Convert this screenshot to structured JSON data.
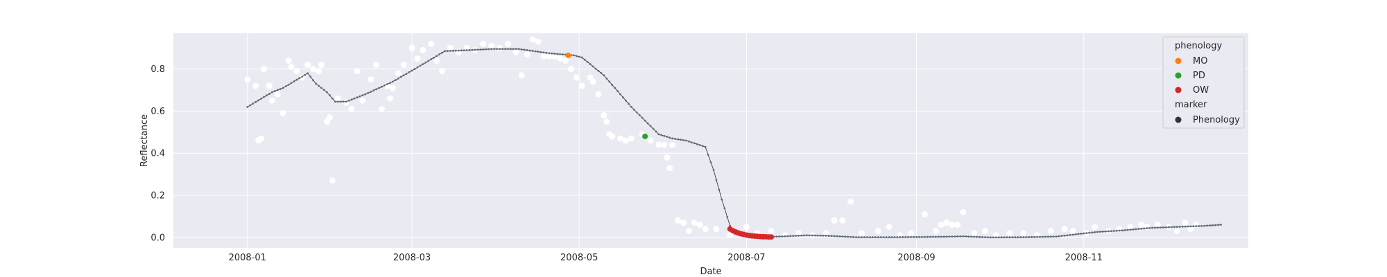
{
  "chart_data": {
    "type": "scatter",
    "xlabel": "Date",
    "ylabel": "Reflectance",
    "xlim": [
      "2007-12-05",
      "2008-12-31"
    ],
    "ylim": [
      -0.05,
      0.97
    ],
    "xticks": [
      "2008-01-01",
      "2008-03-01",
      "2008-05-01",
      "2008-07-01",
      "2008-09-01",
      "2008-11-01"
    ],
    "xtick_labels": [
      "2008-01",
      "2008-03",
      "2008-05",
      "2008-07",
      "2008-09",
      "2008-11"
    ],
    "yticks": [
      0.0,
      0.2,
      0.4,
      0.6,
      0.8
    ],
    "ytick_labels": [
      "0.0",
      "0.2",
      "0.4",
      "0.6",
      "0.8"
    ],
    "grid": true,
    "background_color": "#eaeaf2",
    "colors": {
      "observations": "#ffffff",
      "smoothed_line": "#5a6e7a",
      "MO": "#ff7f0e",
      "PD": "#2ca02c",
      "OW": "#d62728",
      "marker": "#333333"
    },
    "observations": [
      [
        "2008-01-01",
        0.75
      ],
      [
        "2008-01-04",
        0.72
      ],
      [
        "2008-01-05",
        0.46
      ],
      [
        "2008-01-06",
        0.47
      ],
      [
        "2008-01-07",
        0.8
      ],
      [
        "2008-01-09",
        0.72
      ],
      [
        "2008-01-10",
        0.65
      ],
      [
        "2008-01-12",
        0.68
      ],
      [
        "2008-01-14",
        0.59
      ],
      [
        "2008-01-16",
        0.84
      ],
      [
        "2008-01-17",
        0.81
      ],
      [
        "2008-01-19",
        0.79
      ],
      [
        "2008-01-21",
        0.76
      ],
      [
        "2008-01-23",
        0.82
      ],
      [
        "2008-01-25",
        0.8
      ],
      [
        "2008-01-27",
        0.79
      ],
      [
        "2008-01-28",
        0.82
      ],
      [
        "2008-01-30",
        0.55
      ],
      [
        "2008-01-31",
        0.57
      ],
      [
        "2008-02-01",
        0.27
      ],
      [
        "2008-02-03",
        0.66
      ],
      [
        "2008-02-06",
        0.64
      ],
      [
        "2008-02-08",
        0.61
      ],
      [
        "2008-02-10",
        0.79
      ],
      [
        "2008-02-12",
        0.65
      ],
      [
        "2008-02-15",
        0.75
      ],
      [
        "2008-02-17",
        0.82
      ],
      [
        "2008-02-19",
        0.61
      ],
      [
        "2008-02-21",
        0.72
      ],
      [
        "2008-02-22",
        0.66
      ],
      [
        "2008-02-23",
        0.71
      ],
      [
        "2008-02-25",
        0.78
      ],
      [
        "2008-02-27",
        0.82
      ],
      [
        "2008-03-01",
        0.9
      ],
      [
        "2008-03-03",
        0.85
      ],
      [
        "2008-03-05",
        0.89
      ],
      [
        "2008-03-08",
        0.92
      ],
      [
        "2008-03-10",
        0.84
      ],
      [
        "2008-03-12",
        0.79
      ],
      [
        "2008-03-15",
        0.9
      ],
      [
        "2008-03-18",
        0.88
      ],
      [
        "2008-03-21",
        0.9
      ],
      [
        "2008-03-24",
        0.89
      ],
      [
        "2008-03-27",
        0.92
      ],
      [
        "2008-03-30",
        0.91
      ],
      [
        "2008-04-02",
        0.9
      ],
      [
        "2008-04-05",
        0.92
      ],
      [
        "2008-04-08",
        0.88
      ],
      [
        "2008-04-10",
        0.77
      ],
      [
        "2008-04-12",
        0.87
      ],
      [
        "2008-04-14",
        0.94
      ],
      [
        "2008-04-16",
        0.93
      ],
      [
        "2008-04-18",
        0.86
      ],
      [
        "2008-04-20",
        0.86
      ],
      [
        "2008-04-22",
        0.86
      ],
      [
        "2008-04-24",
        0.85
      ],
      [
        "2008-04-26",
        0.84
      ],
      [
        "2008-04-28",
        0.8
      ],
      [
        "2008-04-30",
        0.76
      ],
      [
        "2008-05-02",
        0.72
      ],
      [
        "2008-05-05",
        0.76
      ],
      [
        "2008-05-06",
        0.74
      ],
      [
        "2008-05-08",
        0.68
      ],
      [
        "2008-05-10",
        0.58
      ],
      [
        "2008-05-11",
        0.55
      ],
      [
        "2008-05-12",
        0.49
      ],
      [
        "2008-05-13",
        0.48
      ],
      [
        "2008-05-16",
        0.47
      ],
      [
        "2008-05-18",
        0.46
      ],
      [
        "2008-05-20",
        0.47
      ],
      [
        "2008-05-24",
        0.49
      ],
      [
        "2008-05-27",
        0.46
      ],
      [
        "2008-05-30",
        0.44
      ],
      [
        "2008-06-01",
        0.44
      ],
      [
        "2008-06-02",
        0.38
      ],
      [
        "2008-06-03",
        0.33
      ],
      [
        "2008-06-04",
        0.44
      ],
      [
        "2008-06-06",
        0.08
      ],
      [
        "2008-06-08",
        0.07
      ],
      [
        "2008-06-10",
        0.03
      ],
      [
        "2008-06-12",
        0.07
      ],
      [
        "2008-06-14",
        0.06
      ],
      [
        "2008-06-16",
        0.04
      ],
      [
        "2008-06-20",
        0.04
      ],
      [
        "2008-06-25",
        0.01
      ],
      [
        "2008-07-01",
        0.05
      ],
      [
        "2008-07-05",
        0.02
      ],
      [
        "2008-07-10",
        0.03
      ],
      [
        "2008-07-15",
        0.01
      ],
      [
        "2008-07-20",
        0.02
      ],
      [
        "2008-07-25",
        0.01
      ],
      [
        "2008-07-30",
        0.02
      ],
      [
        "2008-08-02",
        0.08
      ],
      [
        "2008-08-05",
        0.08
      ],
      [
        "2008-08-08",
        0.17
      ],
      [
        "2008-08-12",
        0.02
      ],
      [
        "2008-08-18",
        0.03
      ],
      [
        "2008-08-22",
        0.05
      ],
      [
        "2008-08-26",
        0.01
      ],
      [
        "2008-08-30",
        0.02
      ],
      [
        "2008-09-04",
        0.11
      ],
      [
        "2008-09-08",
        0.03
      ],
      [
        "2008-09-10",
        0.06
      ],
      [
        "2008-09-12",
        0.07
      ],
      [
        "2008-09-14",
        0.06
      ],
      [
        "2008-09-16",
        0.06
      ],
      [
        "2008-09-18",
        0.12
      ],
      [
        "2008-09-22",
        0.02
      ],
      [
        "2008-09-26",
        0.03
      ],
      [
        "2008-09-30",
        0.01
      ],
      [
        "2008-10-05",
        0.02
      ],
      [
        "2008-10-10",
        0.02
      ],
      [
        "2008-10-15",
        0.01
      ],
      [
        "2008-10-20",
        0.03
      ],
      [
        "2008-10-25",
        0.04
      ],
      [
        "2008-10-28",
        0.03
      ],
      [
        "2008-11-02",
        0.02
      ],
      [
        "2008-11-05",
        0.05
      ],
      [
        "2008-11-10",
        0.03
      ],
      [
        "2008-11-14",
        0.04
      ],
      [
        "2008-11-18",
        0.05
      ],
      [
        "2008-11-22",
        0.06
      ],
      [
        "2008-11-24",
        0.05
      ],
      [
        "2008-11-28",
        0.06
      ],
      [
        "2008-12-02",
        0.05
      ],
      [
        "2008-12-05",
        0.03
      ],
      [
        "2008-12-08",
        0.07
      ],
      [
        "2008-12-10",
        0.04
      ],
      [
        "2008-12-12",
        0.06
      ]
    ],
    "smoothed_knots": [
      [
        "2008-01-01",
        0.62
      ],
      [
        "2008-01-10",
        0.69
      ],
      [
        "2008-01-14",
        0.71
      ],
      [
        "2008-01-23",
        0.78
      ],
      [
        "2008-01-26",
        0.73
      ],
      [
        "2008-01-30",
        0.69
      ],
      [
        "2008-02-02",
        0.645
      ],
      [
        "2008-02-06",
        0.645
      ],
      [
        "2008-02-13",
        0.68
      ],
      [
        "2008-02-23",
        0.74
      ],
      [
        "2008-03-02",
        0.8
      ],
      [
        "2008-03-13",
        0.885
      ],
      [
        "2008-03-22",
        0.89
      ],
      [
        "2008-03-30",
        0.895
      ],
      [
        "2008-04-09",
        0.895
      ],
      [
        "2008-04-20",
        0.875
      ],
      [
        "2008-04-29",
        0.865
      ],
      [
        "2008-05-02",
        0.855
      ],
      [
        "2008-05-10",
        0.77
      ],
      [
        "2008-05-20",
        0.62
      ],
      [
        "2008-05-30",
        0.49
      ],
      [
        "2008-06-04",
        0.47
      ],
      [
        "2008-06-09",
        0.46
      ],
      [
        "2008-06-16",
        0.43
      ],
      [
        "2008-06-19",
        0.32
      ],
      [
        "2008-06-22",
        0.18
      ],
      [
        "2008-06-25",
        0.055
      ],
      [
        "2008-06-26",
        0.035
      ],
      [
        "2008-06-30",
        0.015
      ],
      [
        "2008-07-03",
        0.005
      ],
      [
        "2008-07-08",
        0.002
      ],
      [
        "2008-07-15",
        0.005
      ],
      [
        "2008-07-23",
        0.01
      ],
      [
        "2008-07-30",
        0.008
      ],
      [
        "2008-08-10",
        0.001
      ],
      [
        "2008-08-25",
        0.001
      ],
      [
        "2008-09-10",
        0.003
      ],
      [
        "2008-09-18",
        0.005
      ],
      [
        "2008-09-28",
        0.0
      ],
      [
        "2008-10-10",
        0.001
      ],
      [
        "2008-10-22",
        0.004
      ],
      [
        "2008-10-30",
        0.016
      ],
      [
        "2008-11-06",
        0.026
      ],
      [
        "2008-11-15",
        0.033
      ],
      [
        "2008-11-25",
        0.045
      ],
      [
        "2008-12-05",
        0.05
      ],
      [
        "2008-12-15",
        0.055
      ],
      [
        "2008-12-21",
        0.06
      ]
    ],
    "phenology_points": [
      {
        "phase": "MO",
        "date": "2008-04-27",
        "value": 0.865
      },
      {
        "phase": "PD",
        "date": "2008-05-25",
        "value": 0.48
      },
      {
        "phase": "OW",
        "date": "2008-06-25",
        "value": 0.04
      },
      {
        "phase": "OW",
        "date": "2008-06-26",
        "value": 0.032
      },
      {
        "phase": "OW",
        "date": "2008-06-27",
        "value": 0.026
      },
      {
        "phase": "OW",
        "date": "2008-06-28",
        "value": 0.021
      },
      {
        "phase": "OW",
        "date": "2008-06-29",
        "value": 0.017
      },
      {
        "phase": "OW",
        "date": "2008-06-30",
        "value": 0.014
      },
      {
        "phase": "OW",
        "date": "2008-07-01",
        "value": 0.011
      },
      {
        "phase": "OW",
        "date": "2008-07-02",
        "value": 0.009
      },
      {
        "phase": "OW",
        "date": "2008-07-03",
        "value": 0.007
      },
      {
        "phase": "OW",
        "date": "2008-07-04",
        "value": 0.006
      },
      {
        "phase": "OW",
        "date": "2008-07-05",
        "value": 0.005
      },
      {
        "phase": "OW",
        "date": "2008-07-06",
        "value": 0.004
      },
      {
        "phase": "OW",
        "date": "2008-07-07",
        "value": 0.003
      },
      {
        "phase": "OW",
        "date": "2008-07-08",
        "value": 0.003
      },
      {
        "phase": "OW",
        "date": "2008-07-09",
        "value": 0.002
      },
      {
        "phase": "OW",
        "date": "2008-07-10",
        "value": 0.002
      }
    ],
    "legend": {
      "placement": "top-right",
      "title": "phenology",
      "entries": [
        {
          "label": "MO",
          "color": "#ff7f0e"
        },
        {
          "label": "PD",
          "color": "#2ca02c"
        },
        {
          "label": "OW",
          "color": "#d62728"
        }
      ],
      "subtitle": "marker",
      "sub_entries": [
        {
          "label": "Phenology",
          "color": "#333333"
        }
      ]
    }
  }
}
